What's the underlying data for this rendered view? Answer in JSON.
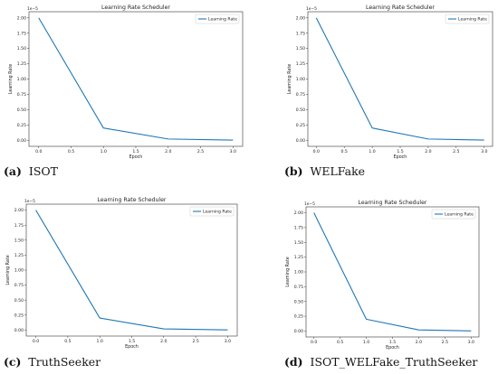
{
  "chart_data": [
    {
      "type": "line",
      "title": "Learning Rate Scheduler",
      "xlabel": "Epoch",
      "ylabel": "Learning Rate",
      "y_offset_label": "1e−5",
      "x": [
        0,
        1,
        2,
        3
      ],
      "series": [
        {
          "name": "Learning Rate",
          "values": [
            2.0,
            0.2,
            0.02,
            0.002
          ],
          "color": "#1f77b4"
        }
      ],
      "xticks": [
        "0.0",
        "0.5",
        "1.0",
        "1.5",
        "2.0",
        "2.5",
        "3.0"
      ],
      "yticks": [
        "0.00",
        "0.25",
        "0.50",
        "0.75",
        "1.00",
        "1.25",
        "1.50",
        "1.75",
        "2.00"
      ],
      "xlim": [
        -0.15,
        3.15
      ],
      "ylim": [
        -0.1,
        2.1
      ],
      "legend": "top-right",
      "caption_label": "(a)",
      "caption_text": "ISOT"
    },
    {
      "type": "line",
      "title": "Learning Rate Scheduler",
      "xlabel": "Epoch",
      "ylabel": "Learning Rate",
      "y_offset_label": "1e−5",
      "x": [
        0,
        1,
        2,
        3
      ],
      "series": [
        {
          "name": "Learning Rate",
          "values": [
            2.0,
            0.2,
            0.02,
            0.002
          ],
          "color": "#1f77b4"
        }
      ],
      "xticks": [
        "0.0",
        "0.5",
        "1.0",
        "1.5",
        "2.0",
        "2.5",
        "3.0"
      ],
      "yticks": [
        "0.00",
        "0.25",
        "0.50",
        "0.75",
        "1.00",
        "1.25",
        "1.50",
        "1.75",
        "2.00"
      ],
      "xlim": [
        -0.15,
        3.15
      ],
      "ylim": [
        -0.1,
        2.1
      ],
      "legend": "top-right",
      "caption_label": "(b)",
      "caption_text": "WELFake"
    },
    {
      "type": "line",
      "title": "Learning Rate Scheduler",
      "xlabel": "Epoch",
      "ylabel": "Learning Rate",
      "y_offset_label": "1e−5",
      "x": [
        0,
        1,
        2,
        3
      ],
      "series": [
        {
          "name": "Learning Rate",
          "values": [
            2.0,
            0.2,
            0.02,
            0.002
          ],
          "color": "#1f77b4"
        }
      ],
      "xticks": [
        "0.0",
        "0.5",
        "1.0",
        "1.5",
        "2.0",
        "2.5",
        "3.0"
      ],
      "yticks": [
        "0.00",
        "0.25",
        "0.50",
        "0.75",
        "1.00",
        "1.25",
        "1.50",
        "1.75",
        "2.00"
      ],
      "xlim": [
        -0.15,
        3.15
      ],
      "ylim": [
        -0.1,
        2.1
      ],
      "legend": "top-right",
      "caption_label": "(c)",
      "caption_text": "TruthSeeker"
    },
    {
      "type": "line",
      "title": "Learning Rate Scheduler",
      "xlabel": "Epoch",
      "ylabel": "Learning Rate",
      "y_offset_label": "1e−5",
      "x": [
        0,
        1,
        2,
        3
      ],
      "series": [
        {
          "name": "Learning Rate",
          "values": [
            2.0,
            0.2,
            0.02,
            0.002
          ],
          "color": "#1f77b4"
        }
      ],
      "xticks": [
        "0.0",
        "0.5",
        "1.0",
        "1.5",
        "2.0",
        "2.5",
        "3.0"
      ],
      "yticks": [
        "0.00",
        "0.25",
        "0.50",
        "0.75",
        "1.00",
        "1.25",
        "1.50",
        "1.75",
        "2.00"
      ],
      "xlim": [
        -0.15,
        3.15
      ],
      "ylim": [
        -0.1,
        2.1
      ],
      "legend": "top-right",
      "caption_label": "(d)",
      "caption_text": "ISOT_WELFake_TruthSeeker"
    }
  ]
}
